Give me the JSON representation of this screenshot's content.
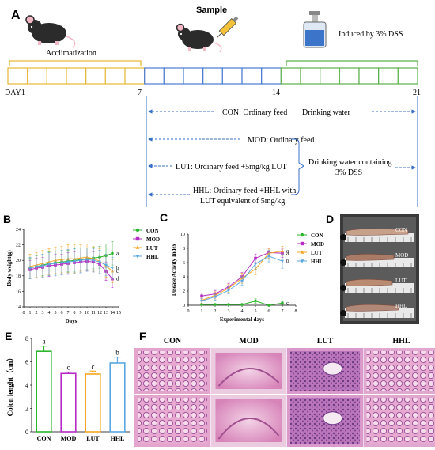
{
  "panel_letters": {
    "a": "A",
    "b": "B",
    "c": "C",
    "d": "D",
    "e": "E",
    "f": "F"
  },
  "timeline": {
    "acclimatization": "Acclimatization",
    "sample": "Sample",
    "induced": "Induced by 3% DSS",
    "day_labels": [
      "DAY1",
      "7",
      "14",
      "21"
    ],
    "colors": {
      "phase1": "#E8B838",
      "phase2": "#4A7BD0",
      "phase3": "#5BB04A"
    }
  },
  "groups_text": {
    "con": "CON: Ordinary feed",
    "drinking_water": "Drinking water",
    "mod": "MOD: Ordinary feed",
    "lut": "LUT: Ordinary feed +5mg/kg LUT",
    "hhl_line1": "HHL: Ordinary feed +HHL with",
    "hhl_line2": "LUT equivalent of 5mg/kg",
    "dss_line1": "Drinking water containing",
    "dss_line2": "3% DSS"
  },
  "legend": [
    {
      "label": "CON",
      "color": "#2DB52D",
      "marker": "circle"
    },
    {
      "label": "MOD",
      "color": "#B52DC4",
      "marker": "square"
    },
    {
      "label": "LUT",
      "color": "#F5A623",
      "marker": "triangle"
    },
    {
      "label": "HHL",
      "color": "#5BA7E0",
      "marker": "triangle-down"
    }
  ],
  "chart_data": [
    {
      "panel": "B",
      "type": "line",
      "xlabel": "Days",
      "ylabel": "Body weight(g)",
      "xlim": [
        0,
        15
      ],
      "ylim": [
        14,
        24
      ],
      "x_ticks": [
        0,
        1,
        2,
        3,
        4,
        5,
        6,
        7,
        8,
        9,
        10,
        11,
        12,
        13,
        14,
        15
      ],
      "y_ticks": [
        14,
        16,
        18,
        20,
        22,
        24
      ],
      "x": [
        1,
        2,
        3,
        4,
        5,
        6,
        7,
        8,
        9,
        10,
        11,
        12,
        13,
        14
      ],
      "series": [
        {
          "name": "CON",
          "values": [
            19.0,
            19.2,
            19.4,
            19.6,
            19.7,
            19.8,
            19.9,
            20.0,
            20.1,
            20.2,
            20.3,
            20.4,
            20.6,
            20.9
          ],
          "error": [
            1.3,
            1.4,
            1.4,
            1.5,
            1.5,
            1.4,
            1.4,
            1.5,
            1.5,
            1.4,
            1.4,
            1.4,
            1.5,
            1.5
          ]
        },
        {
          "name": "MOD",
          "values": [
            18.8,
            19.0,
            19.1,
            19.3,
            19.4,
            19.5,
            19.6,
            19.7,
            19.8,
            19.9,
            19.8,
            19.5,
            18.6,
            17.6
          ],
          "error": [
            1.2,
            1.3,
            1.3,
            1.4,
            1.4,
            1.3,
            1.4,
            1.4,
            1.4,
            1.3,
            1.3,
            1.2,
            1.2,
            1.1
          ]
        },
        {
          "name": "LUT",
          "values": [
            19.2,
            19.4,
            19.6,
            19.8,
            20.0,
            20.1,
            20.2,
            20.2,
            20.3,
            20.4,
            20.2,
            19.9,
            19.3,
            18.6
          ],
          "error": [
            1.6,
            1.6,
            1.7,
            1.7,
            1.7,
            1.7,
            1.8,
            1.8,
            1.7,
            1.7,
            1.6,
            1.6,
            1.5,
            1.5
          ]
        },
        {
          "name": "HHL",
          "values": [
            19.0,
            19.2,
            19.3,
            19.5,
            19.6,
            19.7,
            19.8,
            19.9,
            20.0,
            20.1,
            20.0,
            19.8,
            19.4,
            19.0
          ],
          "error": [
            1.4,
            1.5,
            1.5,
            1.5,
            1.6,
            1.6,
            1.6,
            1.6,
            1.6,
            1.5,
            1.5,
            1.5,
            1.4,
            1.4
          ]
        }
      ],
      "annotations": [
        {
          "text": "a",
          "series": "CON"
        },
        {
          "text": "b",
          "series": "HHL"
        },
        {
          "text": "c",
          "series": "LUT"
        },
        {
          "text": "d",
          "series": "MOD"
        }
      ]
    },
    {
      "panel": "C",
      "type": "line",
      "xlabel": "Experimental days",
      "ylabel": "Disease Activity Index",
      "xlim": [
        0,
        8
      ],
      "ylim": [
        0,
        10
      ],
      "x_ticks": [
        0,
        1,
        2,
        3,
        4,
        5,
        6,
        7,
        8
      ],
      "y_ticks": [
        0,
        2,
        4,
        6,
        8,
        10
      ],
      "x": [
        1,
        2,
        3,
        4,
        5,
        6,
        7
      ],
      "series": [
        {
          "name": "CON",
          "values": [
            0.1,
            0.1,
            0.1,
            0.1,
            0.6,
            0.0,
            0.3
          ],
          "error": [
            0.1,
            0.1,
            0.1,
            0.1,
            0.3,
            0.1,
            0.2
          ]
        },
        {
          "name": "MOD",
          "values": [
            1.3,
            1.6,
            2.6,
            4.0,
            6.6,
            7.4,
            7.3
          ],
          "error": [
            0.4,
            0.5,
            0.5,
            0.6,
            0.6,
            0.6,
            0.6
          ]
        },
        {
          "name": "LUT",
          "values": [
            0.7,
            1.4,
            2.4,
            3.8,
            5.1,
            7.3,
            7.6
          ],
          "error": [
            0.4,
            0.5,
            0.6,
            0.7,
            0.8,
            0.7,
            0.7
          ]
        },
        {
          "name": "HHL",
          "values": [
            0.6,
            1.2,
            2.1,
            3.4,
            5.8,
            6.9,
            6.2
          ],
          "error": [
            0.4,
            0.5,
            0.5,
            0.6,
            0.7,
            0.8,
            1.0
          ]
        }
      ],
      "annotations": [
        {
          "text": "a",
          "series": "LUT"
        },
        {
          "text": "a",
          "series": "MOD"
        },
        {
          "text": "b",
          "series": "HHL"
        },
        {
          "text": "c",
          "series": "CON"
        }
      ]
    },
    {
      "panel": "E",
      "type": "bar",
      "xlabel": "",
      "ylabel": "Colon lenght（cm）",
      "ylim": [
        0,
        8
      ],
      "y_ticks": [
        0,
        2,
        4,
        6,
        8
      ],
      "categories": [
        "CON",
        "MOD",
        "LUT",
        "HHL"
      ],
      "values": [
        6.9,
        5.0,
        4.95,
        5.9
      ],
      "error": [
        0.45,
        0.12,
        0.25,
        0.5
      ],
      "colors": [
        "#2DB52D",
        "#B52DC4",
        "#F5A623",
        "#5BA7E0"
      ],
      "letters": [
        "a",
        "c",
        "c",
        "b"
      ]
    }
  ],
  "photo_labels": [
    "CON",
    "MOD",
    "LUT",
    "HHL"
  ],
  "histology_labels": [
    "CON",
    "MOD",
    "LUT",
    "HHL"
  ]
}
